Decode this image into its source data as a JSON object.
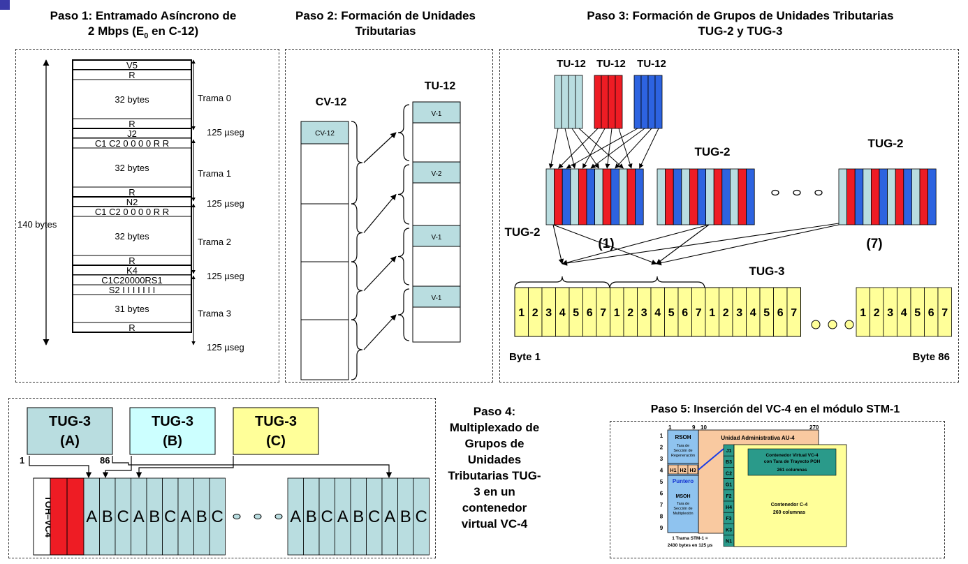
{
  "paso1": {
    "title_line1": "Paso 1: Entramado Asíncrono de",
    "title_line2_a": "2 Mbps (E",
    "title_line2_sub": "0",
    "title_line2_b": " en C-12)",
    "side_label": "140 bytes",
    "rows": [
      "V5",
      "R",
      "32 bytes",
      "R",
      "J2",
      "C1 C2 0 0 0 0 R R",
      "32 bytes",
      "R",
      "N2",
      "C1 C2 0 0 0 0 R R",
      "32 bytes",
      "R",
      "K4",
      "C1C20000RS1",
      "S2 I I I I I I I",
      "31 bytes",
      "R"
    ],
    "frames": [
      "Trama 0",
      "Trama 1",
      "Trama 2",
      "Trama 3"
    ],
    "period": "125 µseg"
  },
  "paso2": {
    "title_line1": "Paso 2: Formación de Unidades",
    "title_line2": "Tributarias",
    "cv_title": "CV-12",
    "cv_box": "CV-12",
    "tu_title": "TU-12",
    "tu_labels": [
      "V-1",
      "V-2",
      "V-1",
      "V-1"
    ]
  },
  "paso3": {
    "title_line1": "Paso 3: Formación de Grupos de Unidades Tributarias",
    "title_line2": "TUG-2 y TUG-3",
    "tu12_labels": [
      "TU-12",
      "TU-12",
      "TU-12"
    ],
    "tug2_label": "TUG-2",
    "tug2_label_right": "TUG-2",
    "tug2_left_label": "TUG-2",
    "index_1": "(1)",
    "index_7": "(7)",
    "tug3_label": "TUG-3",
    "byte_first": "Byte 1",
    "byte_last": "Byte 86",
    "cells": [
      "1",
      "2",
      "3",
      "4",
      "5",
      "6",
      "7"
    ],
    "colors": {
      "light": "#b9dde0",
      "red": "#ee1c24",
      "blue": "#2d63e0",
      "yellow": "#ffff99"
    }
  },
  "paso4": {
    "title": [
      "Paso 4:",
      "Multiplexado de",
      "Grupos de",
      "Unidades",
      "Tributarias TUG-",
      "3 en un",
      "contenedor",
      "virtual VC-4"
    ],
    "tug_a": [
      "TUG-3",
      "(A)"
    ],
    "tug_b": [
      "TUG-3",
      "(B)"
    ],
    "tug_c": [
      "TUG-3",
      "(C)"
    ],
    "col_start": "1",
    "col_end": "86",
    "toh": "TOH–VC4",
    "letters": [
      "A",
      "B",
      "C",
      "A",
      "B",
      "C",
      "A",
      "B",
      "C"
    ],
    "colors": {
      "a": "#b9dde0",
      "b": "#ccffff",
      "c": "#ffff99"
    }
  },
  "paso5": {
    "title": "Paso 5: Inserción del VC-4 en el módulo STM-1",
    "col_1": "1",
    "col_9": "9",
    "col_10": "10",
    "col_270": "270",
    "row_numbers": [
      "1",
      "2",
      "3",
      "4",
      "5",
      "6",
      "7",
      "8",
      "9"
    ],
    "rsoh": "RSOH",
    "rsoh_desc": [
      "Tara de",
      "Sección de",
      "Regeneración"
    ],
    "pointers": [
      "H1",
      "H2",
      "H3"
    ],
    "puntero": "Puntero",
    "msoh": "MSOH",
    "msoh_desc": [
      "Tara de",
      "Sección de",
      "Multiplexión"
    ],
    "au4": "Unidad Administrativa  AU-4",
    "poh": [
      "J1",
      "B3",
      "C2",
      "G1",
      "F2",
      "H4",
      "F3",
      "K3",
      "N1"
    ],
    "vc4": [
      "Contenedor Virtual VC-4",
      "con Tara de Trayecto POH",
      "261 columnas"
    ],
    "c4": [
      "Contenedor C-4",
      "260 columnas"
    ],
    "footer": [
      "1 Trama STM-1 =",
      "2430 bytes en 125 µs"
    ]
  }
}
